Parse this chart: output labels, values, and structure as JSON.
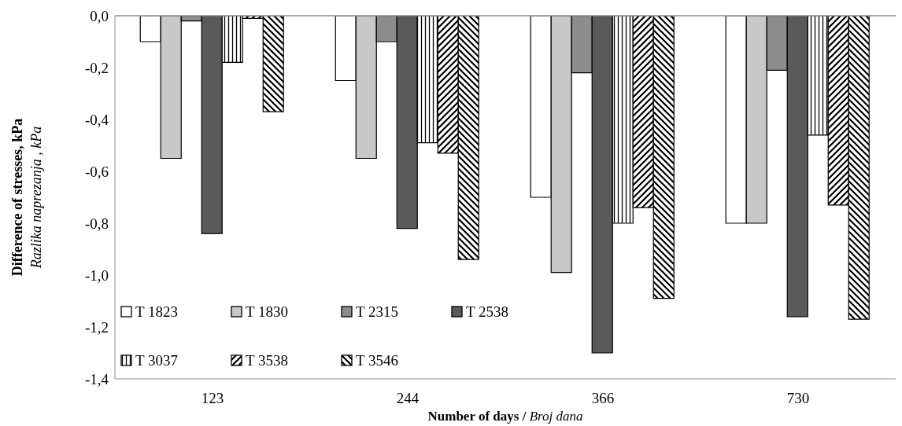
{
  "chart_data": {
    "type": "bar",
    "xlabel": "Number of days / Broj dana",
    "ylabel": "Difference of stresses, kPa\nRazlika naprezanja , kPa",
    "categories": [
      "123",
      "244",
      "366",
      "730"
    ],
    "ylim": [
      -1.4,
      0
    ],
    "yticks": [
      {
        "value": -1.4,
        "label": "-1,4"
      },
      {
        "value": -1.2,
        "label": "-1,2"
      },
      {
        "value": -1.0,
        "label": "-1,0"
      },
      {
        "value": -0.8,
        "label": "-0,8"
      },
      {
        "value": -0.6,
        "label": "-0,6"
      },
      {
        "value": -0.4,
        "label": "-0,4"
      },
      {
        "value": -0.2,
        "label": "-0,2"
      },
      {
        "value": 0,
        "label": "0,0"
      }
    ],
    "legend": "bottom left",
    "series": [
      {
        "name": "T 1823",
        "color": "#ffffff",
        "values": [
          -0.1,
          -0.25,
          -0.7,
          -0.8
        ]
      },
      {
        "name": "T 1830",
        "color": "#c8c8c8",
        "values": [
          -0.55,
          -0.55,
          -0.99,
          -0.8
        ]
      },
      {
        "name": "T 2315",
        "color": "#8c8c8c",
        "values": [
          -0.02,
          -0.1,
          -0.22,
          -0.21
        ]
      },
      {
        "name": "T 2538",
        "color": "#5a5a5a",
        "values": [
          -0.84,
          -0.82,
          -1.3,
          -1.16
        ]
      },
      {
        "name": "T 3037",
        "color": "#000000",
        "values": [
          -0.18,
          -0.49,
          -0.8,
          -0.46
        ]
      },
      {
        "name": "T 3538",
        "color": "#000000",
        "values": [
          -0.01,
          -0.53,
          -0.74,
          -0.73
        ]
      },
      {
        "name": "T 3546",
        "color": "#000000",
        "values": [
          -0.37,
          -0.94,
          -1.09,
          -1.17
        ]
      }
    ]
  }
}
